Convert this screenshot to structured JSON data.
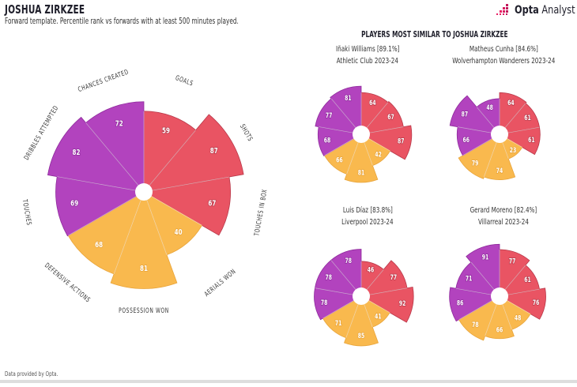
{
  "header": {
    "title": "JOSHUA ZIRKZEE",
    "subtitle": "Forward template. Percentile rank vs forwards with at least 500 minutes played.",
    "logo_text_bold": "Opta",
    "logo_text": "Analyst",
    "logo_icon": "opta-dots-icon"
  },
  "footer": {
    "source": "Data provided by Opta."
  },
  "colors": {
    "attack": "#E95463",
    "defense": "#F9B94E",
    "possession": "#B243BE",
    "attack_text": "#fff",
    "defense_text": "#fff",
    "possession_text": "#fff"
  },
  "similar": {
    "heading": "PLAYERS MOST SIMILAR TO JOSHUA ZIRKZEE",
    "players": [
      {
        "name": "Iñaki Williams [89.1%]",
        "team": "Athletic Club 2023-24"
      },
      {
        "name": "Matheus Cunha [84.6%]",
        "team": "Wolverhampton Wanderers 2023-24"
      },
      {
        "name": "Luis Díaz [83.8%]",
        "team": "Liverpool 2023-24"
      },
      {
        "name": "Gerard Moreno [82.4%]",
        "team": "Villarreal 2023-24"
      }
    ]
  },
  "chart_data": [
    {
      "type": "pie",
      "subtype": "polar-area",
      "title": "Joshua Zirkzee",
      "categories": [
        "GOALS",
        "SHOTS",
        "TOUCHES IN BOX",
        "AERIALS WON",
        "POSSESSION WON",
        "DEFENSIVE ACTIONS",
        "TOUCHES",
        "DRIBBLES ATTEMPTED",
        "CHANCES CREATED"
      ],
      "groups": [
        "attack",
        "attack",
        "attack",
        "defense",
        "defense",
        "defense",
        "possession",
        "possession",
        "possession"
      ],
      "values": [
        59,
        87,
        67,
        40,
        81,
        68,
        69,
        82,
        72
      ],
      "range": [
        0,
        100
      ]
    },
    {
      "type": "pie",
      "subtype": "polar-area",
      "title": "Iñaki Williams",
      "categories": [
        "GOALS",
        "SHOTS",
        "TOUCHES IN BOX",
        "AERIALS WON",
        "POSSESSION WON",
        "DEFENSIVE ACTIONS",
        "TOUCHES",
        "DRIBBLES ATTEMPTED",
        "CHANCES CREATED"
      ],
      "values": [
        64,
        67,
        87,
        42,
        81,
        66,
        68,
        77,
        81
      ],
      "range": [
        0,
        100
      ]
    },
    {
      "type": "pie",
      "subtype": "polar-area",
      "title": "Matheus Cunha",
      "categories": [
        "GOALS",
        "SHOTS",
        "TOUCHES IN BOX",
        "AERIALS WON",
        "POSSESSION WON",
        "DEFENSIVE ACTIONS",
        "TOUCHES",
        "DRIBBLES ATTEMPTED",
        "CHANCES CREATED"
      ],
      "values": [
        64,
        61,
        61,
        23,
        74,
        79,
        66,
        87,
        48
      ],
      "range": [
        0,
        100
      ]
    },
    {
      "type": "pie",
      "subtype": "polar-area",
      "title": "Luis Díaz",
      "categories": [
        "GOALS",
        "SHOTS",
        "TOUCHES IN BOX",
        "AERIALS WON",
        "POSSESSION WON",
        "DEFENSIVE ACTIONS",
        "TOUCHES",
        "DRIBBLES ATTEMPTED",
        "CHANCES CREATED"
      ],
      "values": [
        46,
        77,
        92,
        41,
        85,
        71,
        78,
        78,
        78
      ],
      "range": [
        0,
        100
      ]
    },
    {
      "type": "pie",
      "subtype": "polar-area",
      "title": "Gerard Moreno",
      "categories": [
        "GOALS",
        "SHOTS",
        "TOUCHES IN BOX",
        "AERIALS WON",
        "POSSESSION WON",
        "DEFENSIVE ACTIONS",
        "TOUCHES",
        "DRIBBLES ATTEMPTED",
        "CHANCES CREATED"
      ],
      "values": [
        77,
        61,
        76,
        48,
        66,
        78,
        86,
        71,
        91
      ],
      "range": [
        0,
        100
      ]
    }
  ]
}
